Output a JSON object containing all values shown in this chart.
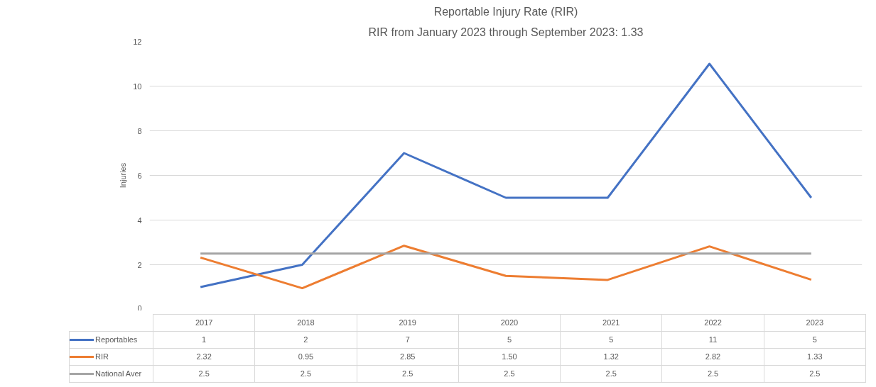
{
  "chart_data": {
    "type": "line",
    "title": "Reportable Injury Rate (RIR)",
    "subtitle": "RIR from January 2023 through September 2023: 1.33",
    "ylabel": "Injuries",
    "categories": [
      "2017",
      "2018",
      "2019",
      "2020",
      "2021",
      "2022",
      "2023"
    ],
    "series": [
      {
        "name": "Reportables",
        "color": "#4472c4",
        "values": [
          1,
          2,
          7,
          5,
          5,
          11,
          5
        ],
        "value_labels": [
          "1",
          "2",
          "7",
          "5",
          "5",
          "11",
          "5"
        ]
      },
      {
        "name": "RIR",
        "color": "#ed7d31",
        "values": [
          2.32,
          0.95,
          2.85,
          1.5,
          1.32,
          2.82,
          1.33
        ],
        "value_labels": [
          "2.32",
          "0.95",
          "2.85",
          "1.50",
          "1.32",
          "2.82",
          "1.33"
        ]
      },
      {
        "name": "National Aver",
        "color": "#a5a5a5",
        "values": [
          2.5,
          2.5,
          2.5,
          2.5,
          2.5,
          2.5,
          2.5
        ],
        "value_labels": [
          "2.5",
          "2.5",
          "2.5",
          "2.5",
          "2.5",
          "2.5",
          "2.5"
        ]
      }
    ],
    "ylim": [
      0,
      12
    ],
    "yticks": [
      0,
      2,
      4,
      6,
      8,
      10,
      12
    ],
    "grid": "y",
    "legend": "bottom",
    "marker": "none",
    "line_style": "solid"
  }
}
